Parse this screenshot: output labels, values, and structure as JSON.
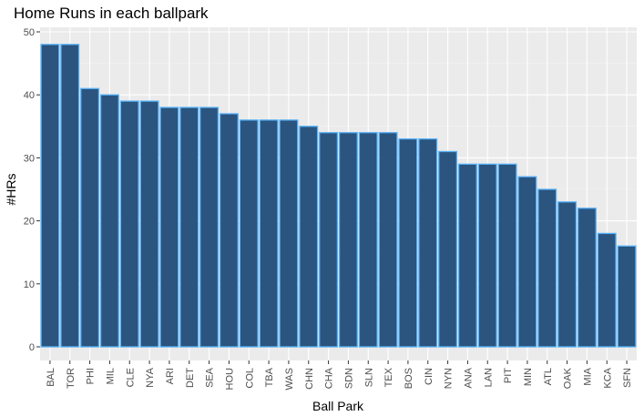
{
  "chart_data": {
    "type": "bar",
    "title": "Home Runs in each ballpark",
    "xlabel": "Ball Park",
    "ylabel": "#HRs",
    "categories": [
      "BAL",
      "TOR",
      "PHI",
      "MIL",
      "CLE",
      "NYA",
      "ARI",
      "DET",
      "SEA",
      "HOU",
      "COL",
      "TBA",
      "WAS",
      "CHN",
      "CHA",
      "SDN",
      "SLN",
      "TEX",
      "BOS",
      "CIN",
      "NYN",
      "ANA",
      "LAN",
      "PIT",
      "MIN",
      "ATL",
      "OAK",
      "MIA",
      "KCA",
      "SFN"
    ],
    "values": [
      48,
      48,
      41,
      40,
      39,
      39,
      38,
      38,
      38,
      37,
      36,
      36,
      36,
      35,
      34,
      34,
      34,
      34,
      33,
      33,
      31,
      29,
      29,
      29,
      27,
      25,
      23,
      22,
      18,
      16
    ],
    "ylim": [
      0,
      50
    ],
    "yticks": [
      0,
      10,
      20,
      30,
      40,
      50
    ],
    "grid": true,
    "legend": "none",
    "colors": {
      "panel": "#EBEBEB",
      "grid_major": "#FFFFFF",
      "grid_minor": "#F4F4F4",
      "bar_fill": "#2B547E",
      "bar_stroke": "#56B1F7",
      "tick": "#333333"
    }
  }
}
